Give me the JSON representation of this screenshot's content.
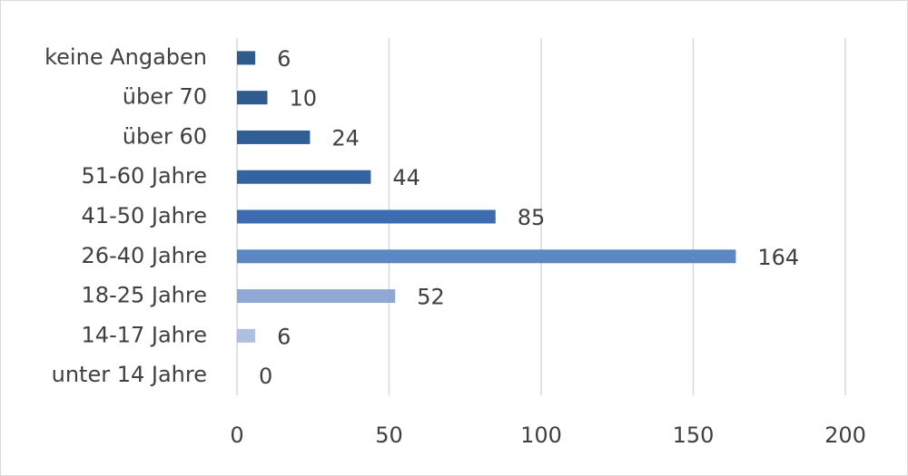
{
  "chart_data": {
    "type": "hbar",
    "categories": [
      "keine Angaben",
      "über 70",
      "über 60",
      "51-60 Jahre",
      "41-50 Jahre",
      "26-40 Jahre",
      "18-25 Jahre",
      "14-17 Jahre",
      "unter 14 Jahre"
    ],
    "values": [
      6,
      10,
      24,
      44,
      85,
      164,
      52,
      6,
      0
    ],
    "colors": [
      "#2e5a8c",
      "#2f5b8e",
      "#305f96",
      "#3563a0",
      "#3d6cb0",
      "#5b87c5",
      "#8fa9d4",
      "#aec0e0",
      "#b7c7e3"
    ],
    "xlim": [
      0,
      200
    ],
    "xticks": [
      0,
      50,
      100,
      150,
      200
    ],
    "grid": true
  }
}
